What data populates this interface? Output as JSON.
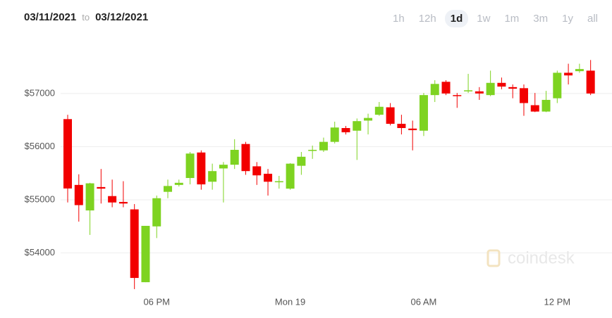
{
  "header": {
    "from": "03/11/2021",
    "joiner": "to",
    "to": "03/12/2021"
  },
  "ranges": [
    "1h",
    "12h",
    "1d",
    "1w",
    "1m",
    "3m",
    "1y",
    "all"
  ],
  "active_range": 2,
  "chart_data": {
    "type": "candlestick",
    "watermark": "coindesk",
    "categories": [
      null,
      null,
      null,
      null,
      null,
      null,
      null,
      null,
      "06 PM",
      null,
      null,
      null,
      null,
      null,
      null,
      null,
      null,
      null,
      null,
      null,
      "Mon 19",
      null,
      null,
      null,
      null,
      null,
      null,
      null,
      null,
      null,
      null,
      null,
      "06 AM",
      null,
      null,
      null,
      null,
      null,
      null,
      null,
      null,
      null,
      null,
      null,
      "12 PM",
      null,
      null,
      null
    ],
    "open": [
      56518,
      55280,
      54800,
      55240,
      55070,
      54960,
      54820,
      53450,
      54500,
      55150,
      55280,
      55410,
      55890,
      55340,
      55590,
      55660,
      56050,
      55630,
      55490,
      55330,
      55210,
      55640,
      55920,
      55930,
      56090,
      56350,
      56300,
      56490,
      56600,
      56740,
      56430,
      56340,
      56300,
      56970,
      57220,
      56970,
      57040,
      57040,
      56970,
      57200,
      57120,
      57100,
      56780,
      56660,
      56910,
      57390,
      57420,
      57430
    ],
    "high": [
      56600,
      55480,
      55320,
      55580,
      55380,
      55350,
      54920,
      54510,
      55080,
      55380,
      55380,
      55900,
      55930,
      55680,
      55710,
      56140,
      56090,
      55710,
      55580,
      55450,
      55690,
      55900,
      56020,
      56170,
      56470,
      56390,
      56530,
      56620,
      56840,
      56820,
      56600,
      56490,
      57010,
      57250,
      57250,
      57010,
      57370,
      57120,
      57430,
      57300,
      57170,
      57170,
      57010,
      57050,
      57430,
      57560,
      57560,
      57630
    ],
    "low": [
      54950,
      54590,
      54340,
      54930,
      54860,
      54860,
      53320,
      53450,
      54280,
      55030,
      55250,
      55290,
      55190,
      55190,
      54950,
      55580,
      55470,
      55280,
      55080,
      55210,
      55190,
      55470,
      55770,
      55900,
      56060,
      56230,
      55750,
      56230,
      56580,
      56400,
      56230,
      55930,
      56200,
      56840,
      56970,
      56730,
      57010,
      56880,
      56950,
      57080,
      56910,
      56580,
      56650,
      56650,
      56820,
      57170,
      57390,
      56970
    ],
    "close": [
      55213,
      54900,
      55310,
      55210,
      54950,
      54930,
      53530,
      54510,
      55030,
      55260,
      55320,
      55870,
      55290,
      55540,
      55660,
      55940,
      55540,
      55460,
      55340,
      55350,
      55680,
      55810,
      55940,
      56090,
      56360,
      56270,
      56480,
      56540,
      56750,
      56430,
      56350,
      56310,
      56970,
      57180,
      57000,
      56950,
      57060,
      57000,
      57200,
      57130,
      57090,
      56820,
      56660,
      56880,
      57390,
      57340,
      57460,
      57000
    ],
    "up_color": "#7ed321",
    "down_color": "#f20000",
    "ylim": [
      53200,
      57700
    ],
    "yticks": [
      {
        "value": 54000,
        "label": "$54000"
      },
      {
        "value": 55000,
        "label": "$55000"
      },
      {
        "value": 56000,
        "label": "$56000"
      },
      {
        "value": 57000,
        "label": "$57000"
      }
    ],
    "grid": true
  }
}
